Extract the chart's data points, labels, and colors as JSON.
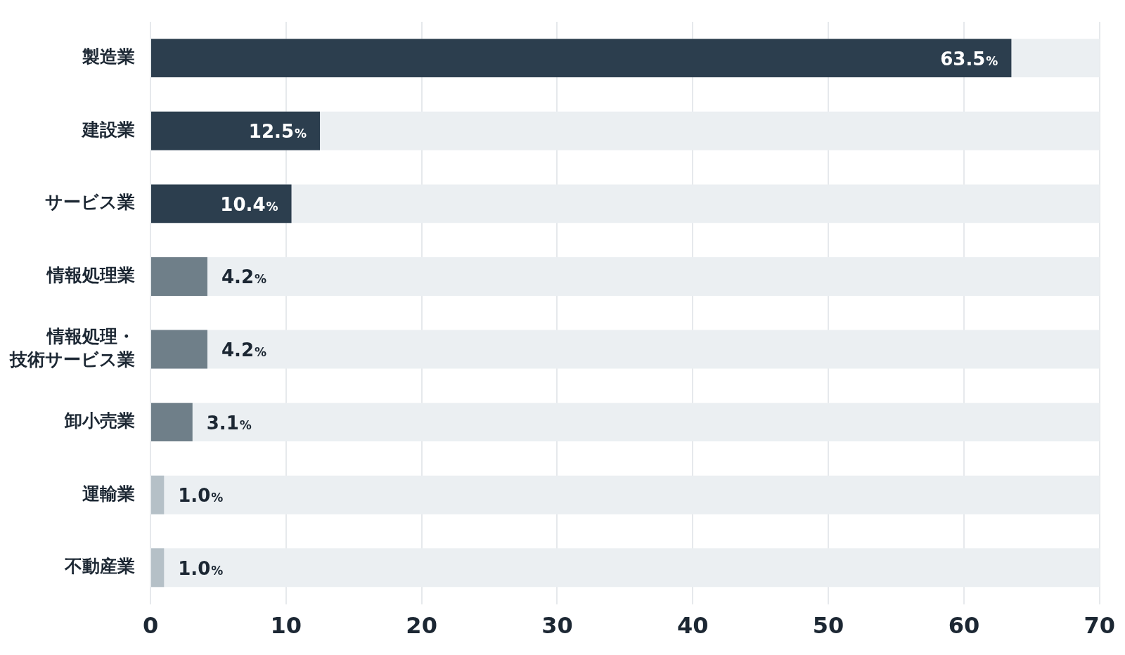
{
  "chart_data": {
    "type": "bar",
    "orientation": "horizontal",
    "categories": [
      "製造業",
      "建設業",
      "サービス業",
      "情報処理業",
      "情報処理・技術サービス業",
      "卸小売業",
      "運輸業",
      "不動産業"
    ],
    "values": [
      63.5,
      12.5,
      10.4,
      4.2,
      4.2,
      3.1,
      1.0,
      1.0
    ],
    "colors": [
      "#2c3e4e",
      "#2c3e4e",
      "#2c3e4e",
      "#6f7f89",
      "#6f7f89",
      "#6f7f89",
      "#b5c0c7",
      "#b5c0c7"
    ],
    "value_labels": [
      "63.5%",
      "12.5%",
      "10.4%",
      "4.2%",
      "4.2%",
      "3.1%",
      "1.0%",
      "1.0%"
    ],
    "xlim": [
      0,
      70
    ],
    "xticks": [
      0,
      10,
      20,
      30,
      40,
      50,
      60,
      70
    ],
    "grid": "x",
    "legend": false
  }
}
